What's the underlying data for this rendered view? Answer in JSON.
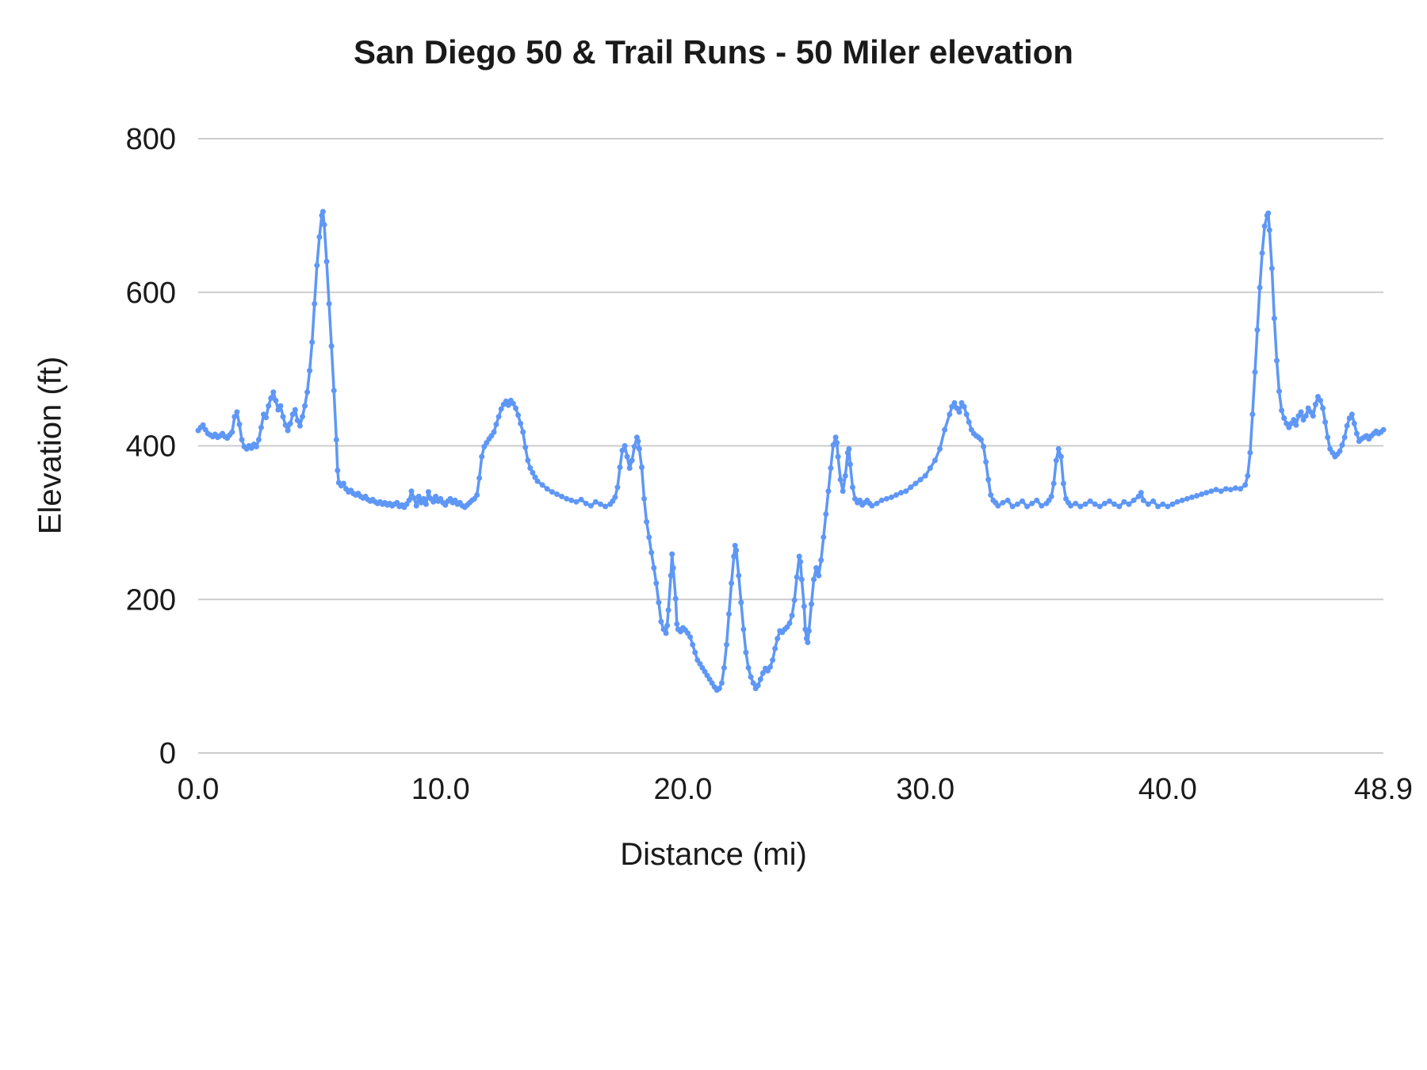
{
  "colors": {
    "line": "#5E97F6",
    "grid": "#CCCCCC",
    "text": "#1A1A1A",
    "background": "#FFFFFF"
  },
  "chart_data": {
    "type": "line",
    "title": "San Diego 50 & Trail Runs - 50 Miler elevation",
    "xlabel": "Distance (mi)",
    "ylabel": "Elevation (ft)",
    "xlim": [
      0,
      48.9
    ],
    "ylim": [
      0,
      800
    ],
    "grid": "horizontal",
    "legend": "none",
    "marker": "circle",
    "x_ticks": [
      {
        "value": 0,
        "label": "0.0"
      },
      {
        "value": 10,
        "label": "10.0"
      },
      {
        "value": 20,
        "label": "20.0"
      },
      {
        "value": 30,
        "label": "30.0"
      },
      {
        "value": 40,
        "label": "40.0"
      },
      {
        "value": 48.9,
        "label": "48.9"
      }
    ],
    "y_ticks": [
      {
        "value": 0,
        "label": "0"
      },
      {
        "value": 200,
        "label": "200"
      },
      {
        "value": 400,
        "label": "400"
      },
      {
        "value": 600,
        "label": "600"
      },
      {
        "value": 800,
        "label": "800"
      }
    ],
    "points": [
      [
        0,
        420
      ],
      [
        0.1,
        424
      ],
      [
        0.2,
        427
      ],
      [
        0.3,
        421
      ],
      [
        0.4,
        416
      ],
      [
        0.5,
        414
      ],
      [
        0.6,
        412
      ],
      [
        0.7,
        415
      ],
      [
        0.8,
        411
      ],
      [
        0.9,
        413
      ],
      [
        1,
        416
      ],
      [
        1.1,
        412
      ],
      [
        1.2,
        410
      ],
      [
        1.3,
        414
      ],
      [
        1.4,
        418
      ],
      [
        1.5,
        438
      ],
      [
        1.6,
        444
      ],
      [
        1.7,
        428
      ],
      [
        1.8,
        408
      ],
      [
        1.9,
        399
      ],
      [
        2,
        396
      ],
      [
        2.1,
        400
      ],
      [
        2.2,
        397
      ],
      [
        2.3,
        402
      ],
      [
        2.4,
        399
      ],
      [
        2.5,
        408
      ],
      [
        2.6,
        424
      ],
      [
        2.7,
        441
      ],
      [
        2.8,
        437
      ],
      [
        2.9,
        452
      ],
      [
        3,
        462
      ],
      [
        3.1,
        470
      ],
      [
        3.2,
        459
      ],
      [
        3.3,
        447
      ],
      [
        3.4,
        452
      ],
      [
        3.5,
        438
      ],
      [
        3.6,
        427
      ],
      [
        3.7,
        420
      ],
      [
        3.8,
        429
      ],
      [
        3.9,
        441
      ],
      [
        4,
        447
      ],
      [
        4.1,
        433
      ],
      [
        4.2,
        426
      ],
      [
        4.3,
        438
      ],
      [
        4.4,
        452
      ],
      [
        4.5,
        470
      ],
      [
        4.6,
        498
      ],
      [
        4.7,
        535
      ],
      [
        4.8,
        585
      ],
      [
        4.9,
        635
      ],
      [
        5,
        672
      ],
      [
        5.1,
        700
      ],
      [
        5.15,
        705
      ],
      [
        5.2,
        688
      ],
      [
        5.3,
        640
      ],
      [
        5.4,
        585
      ],
      [
        5.5,
        530
      ],
      [
        5.6,
        472
      ],
      [
        5.7,
        408
      ],
      [
        5.75,
        368
      ],
      [
        5.8,
        352
      ],
      [
        5.9,
        348
      ],
      [
        6,
        351
      ],
      [
        6.1,
        344
      ],
      [
        6.2,
        340
      ],
      [
        6.3,
        342
      ],
      [
        6.4,
        338
      ],
      [
        6.5,
        336
      ],
      [
        6.6,
        338
      ],
      [
        6.7,
        334
      ],
      [
        6.8,
        332
      ],
      [
        6.9,
        334
      ],
      [
        7,
        330
      ],
      [
        7.1,
        328
      ],
      [
        7.2,
        330
      ],
      [
        7.3,
        327
      ],
      [
        7.4,
        325
      ],
      [
        7.5,
        327
      ],
      [
        7.6,
        324
      ],
      [
        7.7,
        326
      ],
      [
        7.8,
        323
      ],
      [
        7.9,
        325
      ],
      [
        8,
        322
      ],
      [
        8.1,
        324
      ],
      [
        8.2,
        326
      ],
      [
        8.3,
        321
      ],
      [
        8.4,
        323
      ],
      [
        8.5,
        320
      ],
      [
        8.6,
        324
      ],
      [
        8.7,
        329
      ],
      [
        8.8,
        341
      ],
      [
        8.9,
        332
      ],
      [
        9,
        322
      ],
      [
        9.1,
        334
      ],
      [
        9.2,
        326
      ],
      [
        9.3,
        331
      ],
      [
        9.4,
        324
      ],
      [
        9.5,
        340
      ],
      [
        9.6,
        331
      ],
      [
        9.7,
        327
      ],
      [
        9.8,
        334
      ],
      [
        9.9,
        328
      ],
      [
        10,
        331
      ],
      [
        10.1,
        326
      ],
      [
        10.2,
        323
      ],
      [
        10.3,
        328
      ],
      [
        10.4,
        331
      ],
      [
        10.5,
        326
      ],
      [
        10.6,
        329
      ],
      [
        10.7,
        324
      ],
      [
        10.8,
        326
      ],
      [
        10.9,
        322
      ],
      [
        11,
        320
      ],
      [
        11.1,
        323
      ],
      [
        11.2,
        326
      ],
      [
        11.3,
        329
      ],
      [
        11.4,
        331
      ],
      [
        11.5,
        336
      ],
      [
        11.6,
        358
      ],
      [
        11.7,
        386
      ],
      [
        11.8,
        399
      ],
      [
        11.9,
        404
      ],
      [
        12,
        409
      ],
      [
        12.1,
        413
      ],
      [
        12.2,
        418
      ],
      [
        12.3,
        428
      ],
      [
        12.4,
        438
      ],
      [
        12.5,
        448
      ],
      [
        12.6,
        454
      ],
      [
        12.7,
        458
      ],
      [
        12.8,
        453
      ],
      [
        12.9,
        459
      ],
      [
        13,
        455
      ],
      [
        13.1,
        449
      ],
      [
        13.2,
        440
      ],
      [
        13.3,
        429
      ],
      [
        13.4,
        418
      ],
      [
        13.5,
        398
      ],
      [
        13.6,
        381
      ],
      [
        13.7,
        371
      ],
      [
        13.8,
        365
      ],
      [
        13.9,
        359
      ],
      [
        14,
        354
      ],
      [
        14.2,
        349
      ],
      [
        14.4,
        344
      ],
      [
        14.6,
        340
      ],
      [
        14.8,
        337
      ],
      [
        15,
        334
      ],
      [
        15.2,
        331
      ],
      [
        15.4,
        329
      ],
      [
        15.6,
        327
      ],
      [
        15.8,
        330
      ],
      [
        16,
        325
      ],
      [
        16.2,
        322
      ],
      [
        16.4,
        327
      ],
      [
        16.6,
        324
      ],
      [
        16.8,
        321
      ],
      [
        17,
        324
      ],
      [
        17.1,
        328
      ],
      [
        17.2,
        333
      ],
      [
        17.3,
        346
      ],
      [
        17.4,
        372
      ],
      [
        17.5,
        394
      ],
      [
        17.6,
        400
      ],
      [
        17.7,
        386
      ],
      [
        17.8,
        371
      ],
      [
        17.9,
        381
      ],
      [
        18,
        399
      ],
      [
        18.1,
        411
      ],
      [
        18.15,
        406
      ],
      [
        18.2,
        396
      ],
      [
        18.3,
        372
      ],
      [
        18.4,
        331
      ],
      [
        18.5,
        301
      ],
      [
        18.6,
        281
      ],
      [
        18.7,
        261
      ],
      [
        18.8,
        241
      ],
      [
        18.9,
        221
      ],
      [
        19,
        196
      ],
      [
        19.1,
        171
      ],
      [
        19.2,
        161
      ],
      [
        19.3,
        156
      ],
      [
        19.35,
        166
      ],
      [
        19.4,
        186
      ],
      [
        19.5,
        231
      ],
      [
        19.55,
        259
      ],
      [
        19.6,
        241
      ],
      [
        19.7,
        201
      ],
      [
        19.75,
        168
      ],
      [
        19.8,
        161
      ],
      [
        19.9,
        158
      ],
      [
        20,
        163
      ],
      [
        20.1,
        160
      ],
      [
        20.2,
        156
      ],
      [
        20.3,
        151
      ],
      [
        20.4,
        141
      ],
      [
        20.5,
        131
      ],
      [
        20.6,
        121
      ],
      [
        20.7,
        116
      ],
      [
        20.8,
        111
      ],
      [
        20.9,
        106
      ],
      [
        21,
        101
      ],
      [
        21.1,
        96
      ],
      [
        21.2,
        91
      ],
      [
        21.3,
        86
      ],
      [
        21.4,
        82
      ],
      [
        21.5,
        84
      ],
      [
        21.6,
        91
      ],
      [
        21.7,
        111
      ],
      [
        21.8,
        141
      ],
      [
        21.9,
        181
      ],
      [
        22,
        221
      ],
      [
        22.1,
        256
      ],
      [
        22.15,
        270
      ],
      [
        22.2,
        264
      ],
      [
        22.3,
        231
      ],
      [
        22.4,
        196
      ],
      [
        22.5,
        161
      ],
      [
        22.6,
        131
      ],
      [
        22.7,
        111
      ],
      [
        22.8,
        99
      ],
      [
        22.9,
        91
      ],
      [
        23,
        84
      ],
      [
        23.1,
        88
      ],
      [
        23.2,
        96
      ],
      [
        23.3,
        104
      ],
      [
        23.4,
        110
      ],
      [
        23.5,
        107
      ],
      [
        23.6,
        112
      ],
      [
        23.7,
        121
      ],
      [
        23.8,
        136
      ],
      [
        23.9,
        149
      ],
      [
        24,
        159
      ],
      [
        24.1,
        157
      ],
      [
        24.2,
        161
      ],
      [
        24.3,
        164
      ],
      [
        24.4,
        169
      ],
      [
        24.5,
        179
      ],
      [
        24.6,
        199
      ],
      [
        24.7,
        229
      ],
      [
        24.8,
        256
      ],
      [
        24.85,
        249
      ],
      [
        24.9,
        226
      ],
      [
        25,
        191
      ],
      [
        25.05,
        161
      ],
      [
        25.1,
        149
      ],
      [
        25.15,
        144
      ],
      [
        25.2,
        159
      ],
      [
        25.3,
        194
      ],
      [
        25.4,
        226
      ],
      [
        25.5,
        241
      ],
      [
        25.55,
        236
      ],
      [
        25.6,
        231
      ],
      [
        25.7,
        251
      ],
      [
        25.8,
        281
      ],
      [
        25.9,
        311
      ],
      [
        26,
        341
      ],
      [
        26.1,
        371
      ],
      [
        26.2,
        401
      ],
      [
        26.3,
        411
      ],
      [
        26.35,
        404
      ],
      [
        26.4,
        386
      ],
      [
        26.5,
        356
      ],
      [
        26.6,
        341
      ],
      [
        26.7,
        361
      ],
      [
        26.8,
        391
      ],
      [
        26.85,
        396
      ],
      [
        26.9,
        376
      ],
      [
        27,
        346
      ],
      [
        27.1,
        331
      ],
      [
        27.2,
        326
      ],
      [
        27.3,
        329
      ],
      [
        27.4,
        323
      ],
      [
        27.5,
        326
      ],
      [
        27.6,
        329
      ],
      [
        27.7,
        325
      ],
      [
        27.8,
        322
      ],
      [
        28,
        325
      ],
      [
        28.2,
        329
      ],
      [
        28.4,
        331
      ],
      [
        28.6,
        333
      ],
      [
        28.8,
        336
      ],
      [
        29,
        339
      ],
      [
        29.2,
        341
      ],
      [
        29.4,
        346
      ],
      [
        29.6,
        351
      ],
      [
        29.8,
        356
      ],
      [
        30,
        361
      ],
      [
        30.2,
        371
      ],
      [
        30.4,
        381
      ],
      [
        30.6,
        396
      ],
      [
        30.8,
        421
      ],
      [
        31,
        441
      ],
      [
        31.1,
        451
      ],
      [
        31.2,
        456
      ],
      [
        31.3,
        449
      ],
      [
        31.4,
        444
      ],
      [
        31.5,
        456
      ],
      [
        31.6,
        451
      ],
      [
        31.7,
        441
      ],
      [
        31.8,
        431
      ],
      [
        31.9,
        421
      ],
      [
        32,
        416
      ],
      [
        32.1,
        413
      ],
      [
        32.2,
        411
      ],
      [
        32.3,
        408
      ],
      [
        32.4,
        399
      ],
      [
        32.5,
        379
      ],
      [
        32.6,
        356
      ],
      [
        32.7,
        336
      ],
      [
        32.8,
        329
      ],
      [
        32.9,
        326
      ],
      [
        33,
        322
      ],
      [
        33.2,
        326
      ],
      [
        33.4,
        329
      ],
      [
        33.6,
        321
      ],
      [
        33.8,
        324
      ],
      [
        34,
        328
      ],
      [
        34.2,
        321
      ],
      [
        34.4,
        325
      ],
      [
        34.6,
        329
      ],
      [
        34.8,
        322
      ],
      [
        35,
        325
      ],
      [
        35.1,
        329
      ],
      [
        35.2,
        334
      ],
      [
        35.3,
        351
      ],
      [
        35.4,
        381
      ],
      [
        35.5,
        396
      ],
      [
        35.6,
        386
      ],
      [
        35.7,
        351
      ],
      [
        35.8,
        331
      ],
      [
        35.9,
        326
      ],
      [
        36,
        322
      ],
      [
        36.2,
        325
      ],
      [
        36.4,
        321
      ],
      [
        36.6,
        324
      ],
      [
        36.8,
        328
      ],
      [
        37,
        324
      ],
      [
        37.2,
        321
      ],
      [
        37.4,
        325
      ],
      [
        37.6,
        328
      ],
      [
        37.8,
        324
      ],
      [
        38,
        321
      ],
      [
        38.2,
        327
      ],
      [
        38.4,
        324
      ],
      [
        38.6,
        329
      ],
      [
        38.8,
        334
      ],
      [
        38.9,
        339
      ],
      [
        39,
        329
      ],
      [
        39.2,
        324
      ],
      [
        39.4,
        328
      ],
      [
        39.6,
        321
      ],
      [
        39.8,
        324
      ],
      [
        40,
        321
      ],
      [
        40.2,
        324
      ],
      [
        40.4,
        327
      ],
      [
        40.6,
        329
      ],
      [
        40.8,
        331
      ],
      [
        41,
        333
      ],
      [
        41.2,
        335
      ],
      [
        41.4,
        337
      ],
      [
        41.6,
        339
      ],
      [
        41.8,
        341
      ],
      [
        42,
        343
      ],
      [
        42.2,
        341
      ],
      [
        42.4,
        344
      ],
      [
        42.6,
        343
      ],
      [
        42.8,
        345
      ],
      [
        43,
        344
      ],
      [
        43.2,
        349
      ],
      [
        43.3,
        361
      ],
      [
        43.4,
        391
      ],
      [
        43.5,
        441
      ],
      [
        43.6,
        496
      ],
      [
        43.7,
        551
      ],
      [
        43.8,
        606
      ],
      [
        43.9,
        651
      ],
      [
        44,
        686
      ],
      [
        44.1,
        700
      ],
      [
        44.15,
        703
      ],
      [
        44.2,
        681
      ],
      [
        44.3,
        631
      ],
      [
        44.4,
        566
      ],
      [
        44.5,
        511
      ],
      [
        44.6,
        471
      ],
      [
        44.7,
        446
      ],
      [
        44.8,
        436
      ],
      [
        44.9,
        429
      ],
      [
        45,
        424
      ],
      [
        45.1,
        429
      ],
      [
        45.2,
        434
      ],
      [
        45.3,
        427
      ],
      [
        45.4,
        439
      ],
      [
        45.5,
        444
      ],
      [
        45.6,
        434
      ],
      [
        45.7,
        439
      ],
      [
        45.8,
        449
      ],
      [
        45.9,
        444
      ],
      [
        46,
        439
      ],
      [
        46.1,
        454
      ],
      [
        46.2,
        464
      ],
      [
        46.3,
        459
      ],
      [
        46.4,
        449
      ],
      [
        46.5,
        431
      ],
      [
        46.6,
        411
      ],
      [
        46.7,
        396
      ],
      [
        46.8,
        391
      ],
      [
        46.9,
        386
      ],
      [
        47,
        389
      ],
      [
        47.1,
        393
      ],
      [
        47.2,
        401
      ],
      [
        47.3,
        411
      ],
      [
        47.4,
        426
      ],
      [
        47.5,
        436
      ],
      [
        47.6,
        441
      ],
      [
        47.7,
        429
      ],
      [
        47.8,
        416
      ],
      [
        47.9,
        406
      ],
      [
        48,
        409
      ],
      [
        48.1,
        411
      ],
      [
        48.2,
        413
      ],
      [
        48.3,
        409
      ],
      [
        48.4,
        413
      ],
      [
        48.5,
        416
      ],
      [
        48.6,
        419
      ],
      [
        48.7,
        416
      ],
      [
        48.8,
        418
      ],
      [
        48.9,
        421
      ]
    ]
  }
}
